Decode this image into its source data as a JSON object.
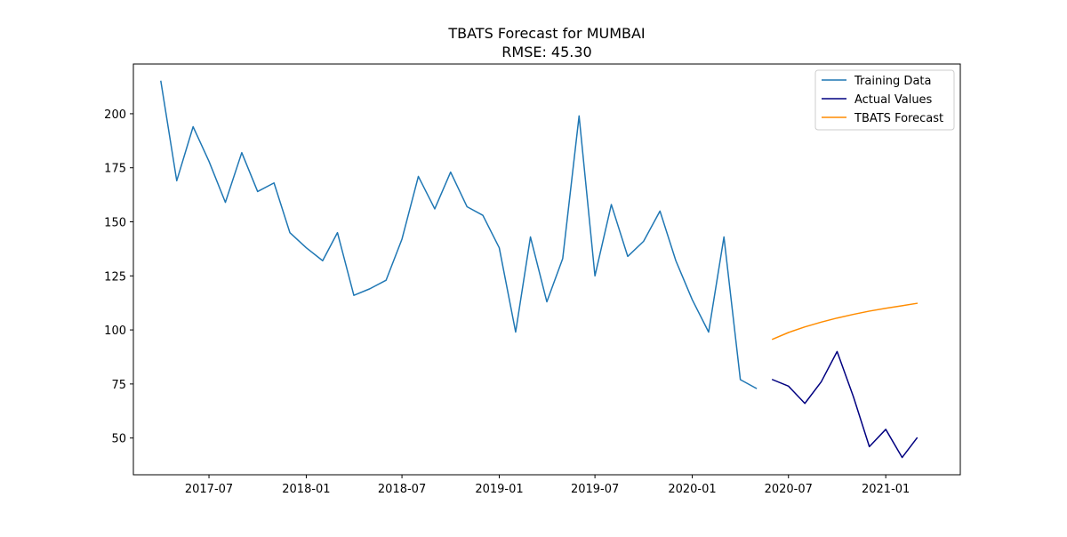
{
  "chart_data": {
    "type": "line",
    "title": "TBATS Forecast for MUMBAI",
    "subtitle": "RMSE: 45.30",
    "xlabel": "",
    "ylabel": "",
    "xlim": [
      "2017-02-08",
      "2021-05-22"
    ],
    "ylim": [
      33.0,
      223.0
    ],
    "grid": false,
    "legend_position": "top-right",
    "x_ticks": [
      "2017-07",
      "2018-01",
      "2018-07",
      "2019-01",
      "2019-07",
      "2020-01",
      "2020-07",
      "2021-01"
    ],
    "y_ticks": [
      50,
      75,
      100,
      125,
      150,
      175,
      200
    ],
    "series": [
      {
        "name": "Training Data",
        "color": "#1f77b4",
        "x": [
          "2017-04-01",
          "2017-05-01",
          "2017-06-01",
          "2017-07-01",
          "2017-08-01",
          "2017-09-01",
          "2017-10-01",
          "2017-11-01",
          "2017-12-01",
          "2018-01-01",
          "2018-02-01",
          "2018-03-01",
          "2018-04-01",
          "2018-05-01",
          "2018-06-01",
          "2018-07-01",
          "2018-08-01",
          "2018-09-01",
          "2018-10-01",
          "2018-11-01",
          "2018-12-01",
          "2019-01-01",
          "2019-02-01",
          "2019-03-01",
          "2019-04-01",
          "2019-05-01",
          "2019-06-01",
          "2019-07-01",
          "2019-08-01",
          "2019-09-01",
          "2019-10-01",
          "2019-11-01",
          "2019-12-01",
          "2020-01-01",
          "2020-02-01",
          "2020-03-01",
          "2020-04-01",
          "2020-05-01"
        ],
        "values": [
          215,
          169,
          194,
          178,
          159,
          182,
          164,
          168,
          145,
          138,
          132,
          145,
          116,
          119,
          123,
          142,
          171,
          156,
          173,
          157,
          153,
          138,
          99,
          143,
          113,
          133,
          199,
          125,
          158,
          134,
          141,
          155,
          132,
          114,
          99,
          143,
          77,
          73
        ]
      },
      {
        "name": "Actual Values",
        "color": "#000080",
        "x": [
          "2020-06-01",
          "2020-07-01",
          "2020-08-01",
          "2020-09-01",
          "2020-10-01",
          "2020-11-01",
          "2020-12-01",
          "2021-01-01",
          "2021-02-01",
          "2021-03-01"
        ],
        "values": [
          77,
          74,
          66,
          76,
          90,
          69,
          46,
          54,
          41,
          50
        ]
      },
      {
        "name": "TBATS Forecast",
        "color": "#ff8c00",
        "x": [
          "2020-06-01",
          "2020-07-01",
          "2020-08-01",
          "2020-09-01",
          "2020-10-01",
          "2020-11-01",
          "2020-12-01",
          "2021-01-01",
          "2021-02-01",
          "2021-03-01"
        ],
        "values": [
          95.7,
          98.8,
          101.4,
          103.6,
          105.5,
          107.2,
          108.7,
          110.0,
          111.2,
          112.3
        ]
      }
    ]
  }
}
